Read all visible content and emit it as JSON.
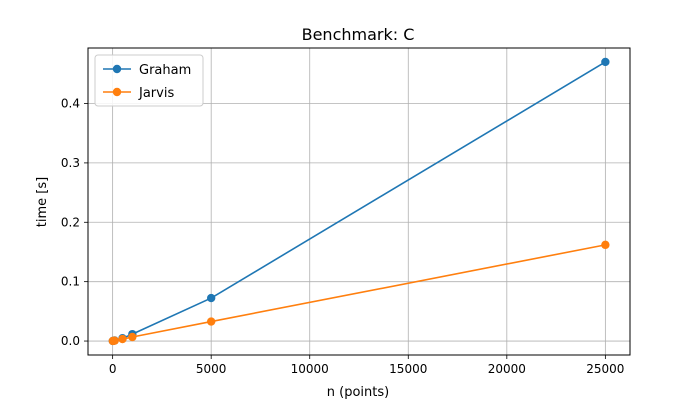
{
  "chart_data": {
    "type": "line",
    "title": "Benchmark: C",
    "xlabel": "n (points)",
    "ylabel": "time [s]",
    "xlim": [
      -1250,
      26250
    ],
    "ylim": [
      -0.0235,
      0.4935
    ],
    "xticks": [
      0,
      5000,
      10000,
      15000,
      20000,
      25000
    ],
    "xtick_labels": [
      "0",
      "5000",
      "10000",
      "15000",
      "20000",
      "25000"
    ],
    "yticks": [
      0.0,
      0.1,
      0.2,
      0.3,
      0.4
    ],
    "ytick_labels": [
      "0.0",
      "0.1",
      "0.2",
      "0.3",
      "0.4"
    ],
    "grid": true,
    "legend_position": "top-left",
    "series": [
      {
        "name": "Graham",
        "color": "#1f77b4",
        "x": [
          10,
          100,
          500,
          1000,
          5000,
          25000
        ],
        "y": [
          0.0001,
          0.0009,
          0.0047,
          0.0116,
          0.0724,
          0.47
        ]
      },
      {
        "name": "Jarvis",
        "color": "#ff7f0e",
        "x": [
          10,
          100,
          500,
          1000,
          5000,
          25000
        ],
        "y": [
          0.0001,
          0.0006,
          0.0033,
          0.0068,
          0.0328,
          0.162
        ]
      }
    ]
  }
}
